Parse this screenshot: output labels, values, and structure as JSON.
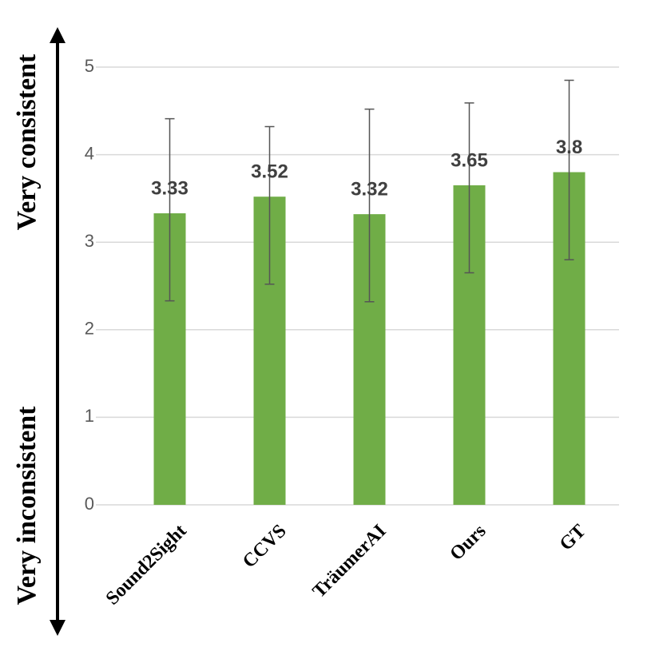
{
  "chart_data": {
    "type": "bar",
    "categories": [
      "Sound2Sight",
      "CCVS",
      "TräumerAI",
      "Ours",
      "GT"
    ],
    "values": [
      3.33,
      3.52,
      3.32,
      3.65,
      3.8
    ],
    "error_plus": [
      1.08,
      0.8,
      1.2,
      0.94,
      1.05
    ],
    "error_minus": [
      1.0,
      1.0,
      1.0,
      1.0,
      1.0
    ],
    "color": "#70ad47",
    "ylim": [
      0,
      5
    ],
    "yticks": [
      0,
      1,
      2,
      3,
      4,
      5
    ],
    "grid": true,
    "top_annotation": "Very consistent",
    "bottom_annotation": "Very inconsistent"
  }
}
